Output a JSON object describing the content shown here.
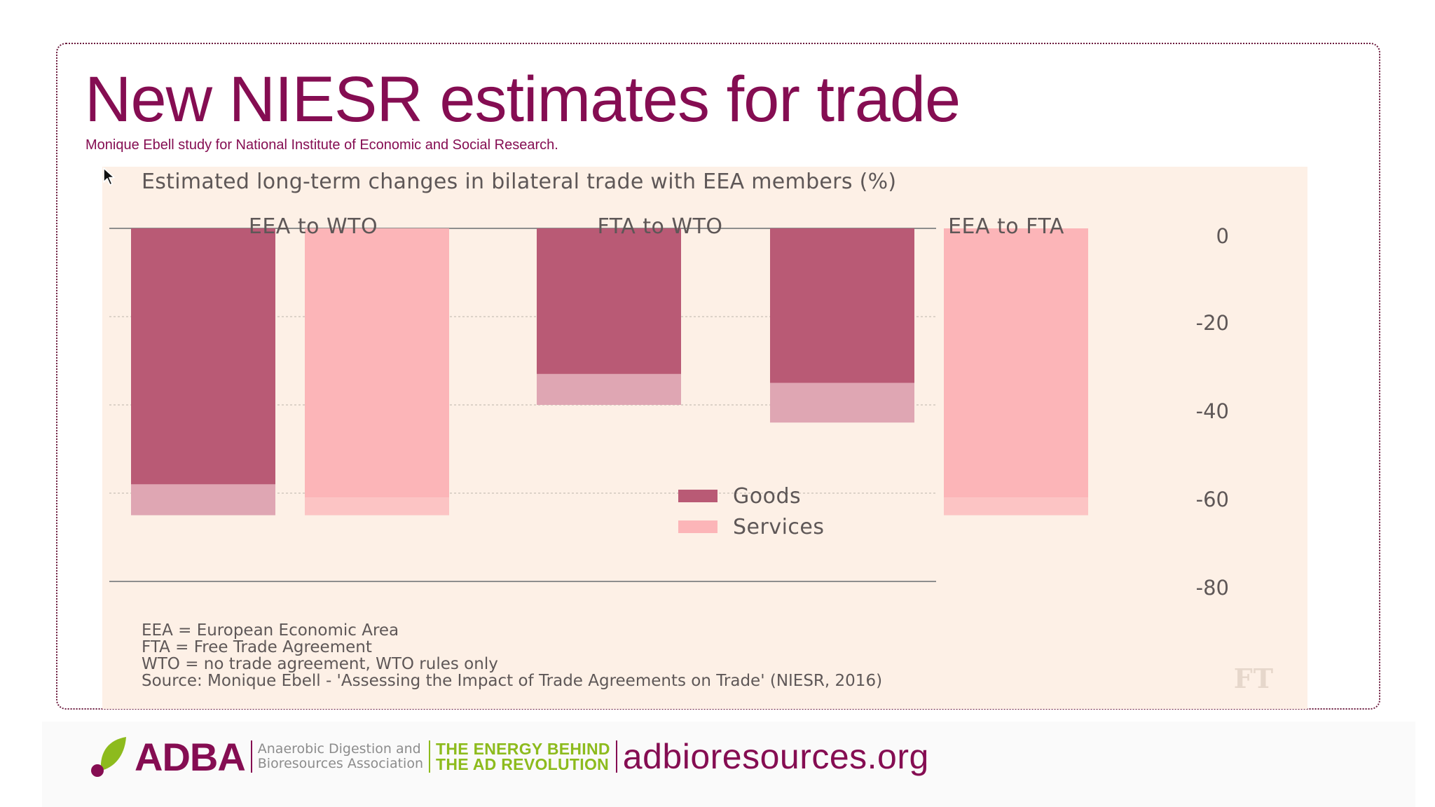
{
  "slide": {
    "title": "New NIESR estimates for trade",
    "subtitle": "Monique Ebell study for National Institute of Economic and Social Research."
  },
  "chart_data": {
    "type": "bar",
    "title": "Estimated long-term changes in bilateral trade with EEA members (%)",
    "categories": [
      "EEA to WTO",
      "FTA to WTO",
      "EEA to FTA"
    ],
    "series": [
      {
        "name": "Goods",
        "values": [
          -62,
          -40,
          -44
        ],
        "color": "#b95a75",
        "range_color": "#dfa6b3"
      },
      {
        "name": "Services",
        "values": [
          -65,
          null,
          -65
        ],
        "color": "#fcb5b8",
        "range_color": "#fcc4c4"
      }
    ],
    "ranges": {
      "Goods": [
        [
          -58,
          -65
        ],
        [
          -33,
          -40
        ],
        [
          -35,
          -44
        ]
      ],
      "Services": [
        [
          -61,
          -65
        ],
        null,
        [
          -61,
          -65
        ]
      ]
    },
    "yticks": [
      "0",
      "-20",
      "-40",
      "-60",
      "-80"
    ],
    "ytick_values": [
      0,
      -20,
      -40,
      -60,
      -80
    ],
    "ylim": [
      -80,
      0
    ],
    "legend_position": "center",
    "grid": true,
    "footnotes": [
      "EEA = European Economic Area",
      "FTA = Free Trade Agreement",
      "WTO = no trade agreement, WTO rules only",
      "Source: Monique Ebell - 'Assessing the Impact of Trade Agreements on Trade' (NIESR, 2016)"
    ],
    "source_logo": "FT"
  },
  "footer": {
    "logo_text": "ADBA",
    "association_line1": "Anaerobic Digestion and",
    "association_line2": "Bioresources Association",
    "tagline_line1": "THE ENERGY BEHIND",
    "tagline_line2": "THE AD REVOLUTION",
    "website": "adbioresources.org"
  },
  "colors": {
    "brand": "#850d52",
    "accent_green": "#8dbb1d",
    "chart_background": "#fdf0e6"
  },
  "icons": {
    "cursor": "cursor-arrow-icon",
    "leaf": "leaf-icon"
  }
}
